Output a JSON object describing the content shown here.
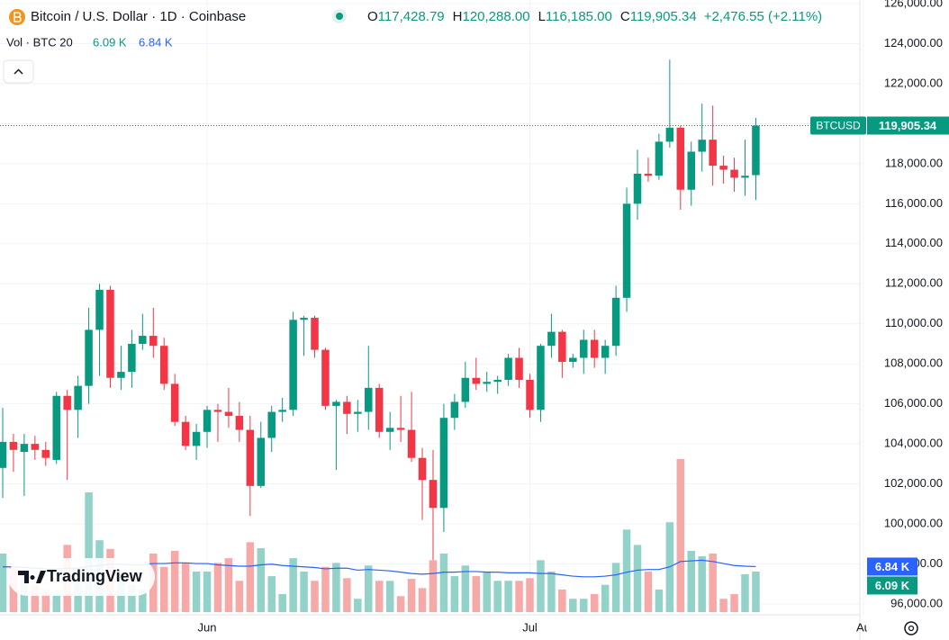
{
  "chart_data": {
    "type": "candlestick",
    "header": {
      "title": "Bitcoin / U.S. Dollar · 1D · Coinbase",
      "ohlc": [
        {
          "label": "O",
          "value": "117,428.79"
        },
        {
          "label": "H",
          "value": "120,288.00"
        },
        {
          "label": "L",
          "value": "116,185.00"
        },
        {
          "label": "C",
          "value": "119,905.34"
        }
      ],
      "change": "+2,476.55 (+2.11%)",
      "volume_title": "Vol · BTC 20",
      "volume_label": "6.09 K",
      "volume_ma_label": "6.84 K"
    },
    "symbol_tag": "BTCUSD",
    "logo": "TradingView",
    "ohlc": [
      [
        102800,
        105800,
        101300,
        104100
      ],
      [
        104100,
        104500,
        102600,
        103700
      ],
      [
        103600,
        104500,
        101400,
        104000
      ],
      [
        104000,
        104400,
        103200,
        103700
      ],
      [
        103700,
        104100,
        102900,
        103300
      ],
      [
        103200,
        106600,
        103000,
        106400
      ],
      [
        106400,
        106700,
        102200,
        105700
      ],
      [
        105700,
        107400,
        104300,
        106900
      ],
      [
        106900,
        110800,
        106000,
        109700
      ],
      [
        109700,
        112000,
        107400,
        111700
      ],
      [
        111700,
        111900,
        106800,
        107300
      ],
      [
        107300,
        108900,
        106700,
        107600
      ],
      [
        107600,
        109700,
        106800,
        109000
      ],
      [
        109000,
        110500,
        108700,
        109400
      ],
      [
        109400,
        110800,
        108300,
        108900
      ],
      [
        108900,
        109300,
        106700,
        107000
      ],
      [
        107000,
        107500,
        104900,
        105100
      ],
      [
        105100,
        105400,
        103700,
        103900
      ],
      [
        103900,
        105000,
        103200,
        104600
      ],
      [
        104600,
        105900,
        103800,
        105700
      ],
      [
        105700,
        106000,
        104100,
        105600
      ],
      [
        105600,
        106800,
        104800,
        105400
      ],
      [
        105400,
        106100,
        104100,
        104700
      ],
      [
        104700,
        105400,
        100400,
        101900
      ],
      [
        101900,
        105100,
        101800,
        104300
      ],
      [
        104300,
        105900,
        103600,
        105600
      ],
      [
        105600,
        106300,
        105100,
        105700
      ],
      [
        105700,
        110600,
        105400,
        110200
      ],
      [
        110200,
        110400,
        108400,
        110300
      ],
      [
        110300,
        110400,
        108300,
        108700
      ],
      [
        108700,
        108800,
        105700,
        105900
      ],
      [
        105900,
        106200,
        102700,
        106100
      ],
      [
        106100,
        106400,
        104500,
        105500
      ],
      [
        105500,
        106200,
        104600,
        105600
      ],
      [
        105600,
        108900,
        104700,
        106800
      ],
      [
        106800,
        107000,
        104300,
        104600
      ],
      [
        104600,
        105600,
        103700,
        104800
      ],
      [
        104800,
        106400,
        104100,
        104700
      ],
      [
        104700,
        106600,
        103100,
        103300
      ],
      [
        103300,
        103800,
        100200,
        102200
      ],
      [
        102200,
        103700,
        98200,
        100800
      ],
      [
        100800,
        106000,
        99600,
        105300
      ],
      [
        105300,
        106500,
        104700,
        106100
      ],
      [
        106100,
        108100,
        105800,
        107300
      ],
      [
        107300,
        108300,
        106700,
        107000
      ],
      [
        107000,
        107600,
        106600,
        107100
      ],
      [
        107100,
        107400,
        106500,
        107200
      ],
      [
        107200,
        108500,
        106900,
        108300
      ],
      [
        108300,
        108800,
        106800,
        107200
      ],
      [
        107200,
        107500,
        105300,
        105700
      ],
      [
        105700,
        109000,
        105100,
        108900
      ],
      [
        108900,
        110500,
        108300,
        109600
      ],
      [
        109600,
        109700,
        107300,
        108100
      ],
      [
        108100,
        108500,
        107800,
        108300
      ],
      [
        108300,
        109700,
        107500,
        109200
      ],
      [
        109200,
        109700,
        107800,
        108300
      ],
      [
        108300,
        109200,
        107500,
        108900
      ],
      [
        108900,
        111900,
        108400,
        111300
      ],
      [
        111300,
        116800,
        110600,
        116000
      ],
      [
        116000,
        118700,
        115200,
        117500
      ],
      [
        117500,
        118300,
        117100,
        117400
      ],
      [
        117400,
        119500,
        117200,
        119100
      ],
      [
        119100,
        123200,
        118800,
        119800
      ],
      [
        119800,
        119900,
        115700,
        116700
      ],
      [
        116700,
        119100,
        115900,
        118600
      ],
      [
        118600,
        121000,
        117600,
        119200
      ],
      [
        119200,
        120900,
        116900,
        117900
      ],
      [
        117900,
        118400,
        117000,
        117700
      ],
      [
        117700,
        118300,
        116600,
        117300
      ],
      [
        117300,
        119200,
        116400,
        117400
      ],
      [
        117428.79,
        120288,
        116185,
        119905.34
      ]
    ],
    "volume": [
      8.8,
      6.8,
      5.4,
      4.1,
      3.4,
      2.7,
      10.1,
      5.4,
      18.0,
      10.8,
      9.5,
      6.1,
      4.1,
      3.4,
      8.8,
      6.8,
      9.2,
      7.4,
      6.1,
      6.1,
      7.4,
      8.1,
      4.7,
      10.5,
      9.6,
      5.4,
      2.7,
      8.1,
      6.1,
      4.7,
      6.8,
      7.4,
      5.1,
      2.0,
      7.0,
      4.7,
      4.7,
      2.4,
      5.0,
      3.6,
      7.8,
      8.8,
      5.4,
      7.0,
      5.4,
      6.1,
      4.7,
      4.7,
      4.7,
      5.1,
      7.8,
      6.1,
      3.4,
      2.0,
      2.0,
      2.7,
      4.1,
      7.4,
      12.4,
      10.1,
      6.1,
      3.4,
      13.5,
      23.0,
      9.2,
      8.4,
      8.8,
      2.0,
      2.7,
      5.7,
      6.09
    ],
    "volume_ma": [
      6.8,
      6.8,
      6.7,
      6.6,
      6.5,
      6.5,
      6.6,
      6.6,
      6.9,
      7.0,
      7.2,
      7.2,
      7.1,
      7.1,
      7.3,
      7.3,
      7.4,
      7.4,
      7.3,
      7.3,
      7.1,
      7.0,
      6.9,
      6.9,
      7.1,
      7.2,
      7.0,
      6.9,
      6.8,
      6.7,
      6.5,
      6.6,
      6.6,
      6.3,
      6.4,
      6.3,
      6.2,
      6.0,
      5.8,
      5.7,
      5.8,
      6.0,
      6.0,
      6.1,
      6.1,
      6.0,
      6.0,
      5.9,
      5.9,
      5.9,
      5.8,
      5.8,
      5.6,
      5.4,
      5.3,
      5.3,
      5.4,
      5.6,
      6.0,
      6.3,
      6.4,
      6.4,
      6.8,
      7.6,
      7.7,
      7.8,
      7.6,
      7.3,
      7.0,
      6.9,
      6.84
    ],
    "colors": {
      "up": "#089981",
      "down": "#f23645",
      "up_volume": "#92d2c8",
      "down_volume": "#f7a9a7",
      "volume_ma": "#2962ff"
    },
    "ylim": [
      95595,
      126180
    ],
    "vlim": [
      0,
      92
    ],
    "xlim": [
      -0.25,
      79.67
    ],
    "yticks": [
      {
        "value": 96000,
        "label": "96,000.00"
      },
      {
        "value": 98000,
        "label": "98,000.00"
      },
      {
        "value": 100000,
        "label": "100,000.00"
      },
      {
        "value": 102000,
        "label": "102,000.00"
      },
      {
        "value": 104000,
        "label": "104,000.00"
      },
      {
        "value": 106000,
        "label": "106,000.00"
      },
      {
        "value": 108000,
        "label": "108,000.00"
      },
      {
        "value": 110000,
        "label": "110,000.00"
      },
      {
        "value": 112000,
        "label": "112,000.00"
      },
      {
        "value": 114000,
        "label": "114,000.00"
      },
      {
        "value": 116000,
        "label": "116,000.00"
      },
      {
        "value": 118000,
        "label": "118,000.00"
      },
      {
        "value": 120000,
        "label": "120,000.00"
      },
      {
        "value": 122000,
        "label": "122,000.00"
      },
      {
        "value": 124000,
        "label": "124,000.00"
      },
      {
        "value": 126000,
        "label": "126,000.00"
      }
    ],
    "xticks": [
      {
        "value": 19,
        "label": "Jun"
      },
      {
        "value": 49,
        "label": "Jul"
      },
      {
        "value": 80,
        "label": "Au"
      }
    ],
    "grid": true
  }
}
